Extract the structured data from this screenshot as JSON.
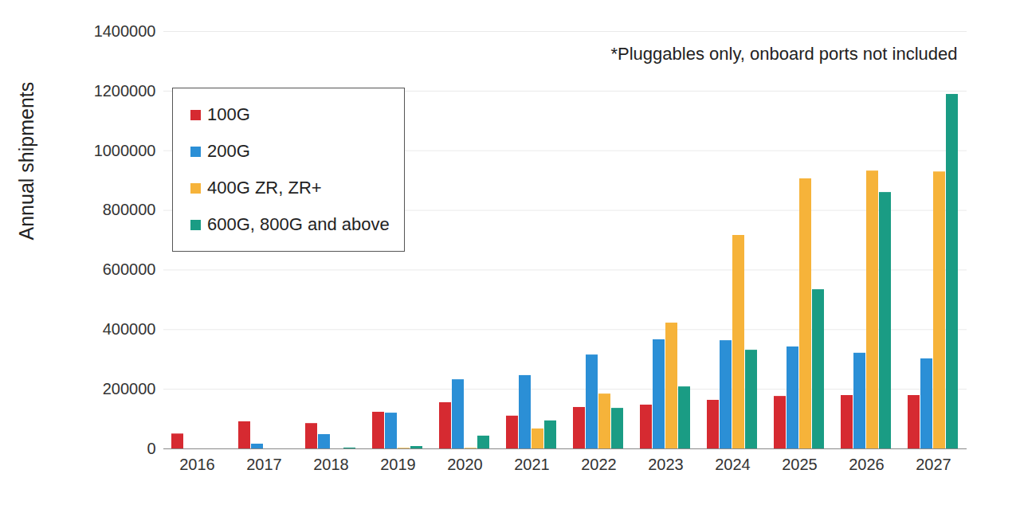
{
  "chart_data": {
    "type": "bar",
    "annotation": "*Pluggables only, onboard ports not included",
    "y_label": "Annual shipments",
    "categories": [
      "2016",
      "2017",
      "2018",
      "2019",
      "2020",
      "2021",
      "2022",
      "2023",
      "2024",
      "2025",
      "2026",
      "2027"
    ],
    "series": [
      {
        "name": "100G",
        "color": "#d62a31",
        "values": [
          50000,
          91000,
          85000,
          123000,
          155000,
          110000,
          139000,
          147000,
          163000,
          176000,
          179000,
          179000
        ]
      },
      {
        "name": "200G",
        "color": "#2b8fd6",
        "values": [
          0,
          16000,
          48000,
          120000,
          232000,
          246000,
          315000,
          366000,
          363000,
          342000,
          321000,
          302000
        ]
      },
      {
        "name": "400G ZR, ZR+",
        "color": "#f6b33a",
        "values": [
          0,
          0,
          0,
          2000,
          2000,
          67000,
          184000,
          422000,
          716000,
          906000,
          932000,
          929000
        ]
      },
      {
        "name": "600G, 800G and above",
        "color": "#1a9c84",
        "values": [
          0,
          0,
          3000,
          8000,
          43000,
          94000,
          136000,
          208000,
          331000,
          534000,
          860000,
          1189000
        ]
      }
    ],
    "ylim": [
      0,
      1400000
    ],
    "yticks": [
      0,
      200000,
      400000,
      600000,
      800000,
      1000000,
      1200000,
      1400000
    ],
    "grid": true,
    "legend": "top-left"
  }
}
